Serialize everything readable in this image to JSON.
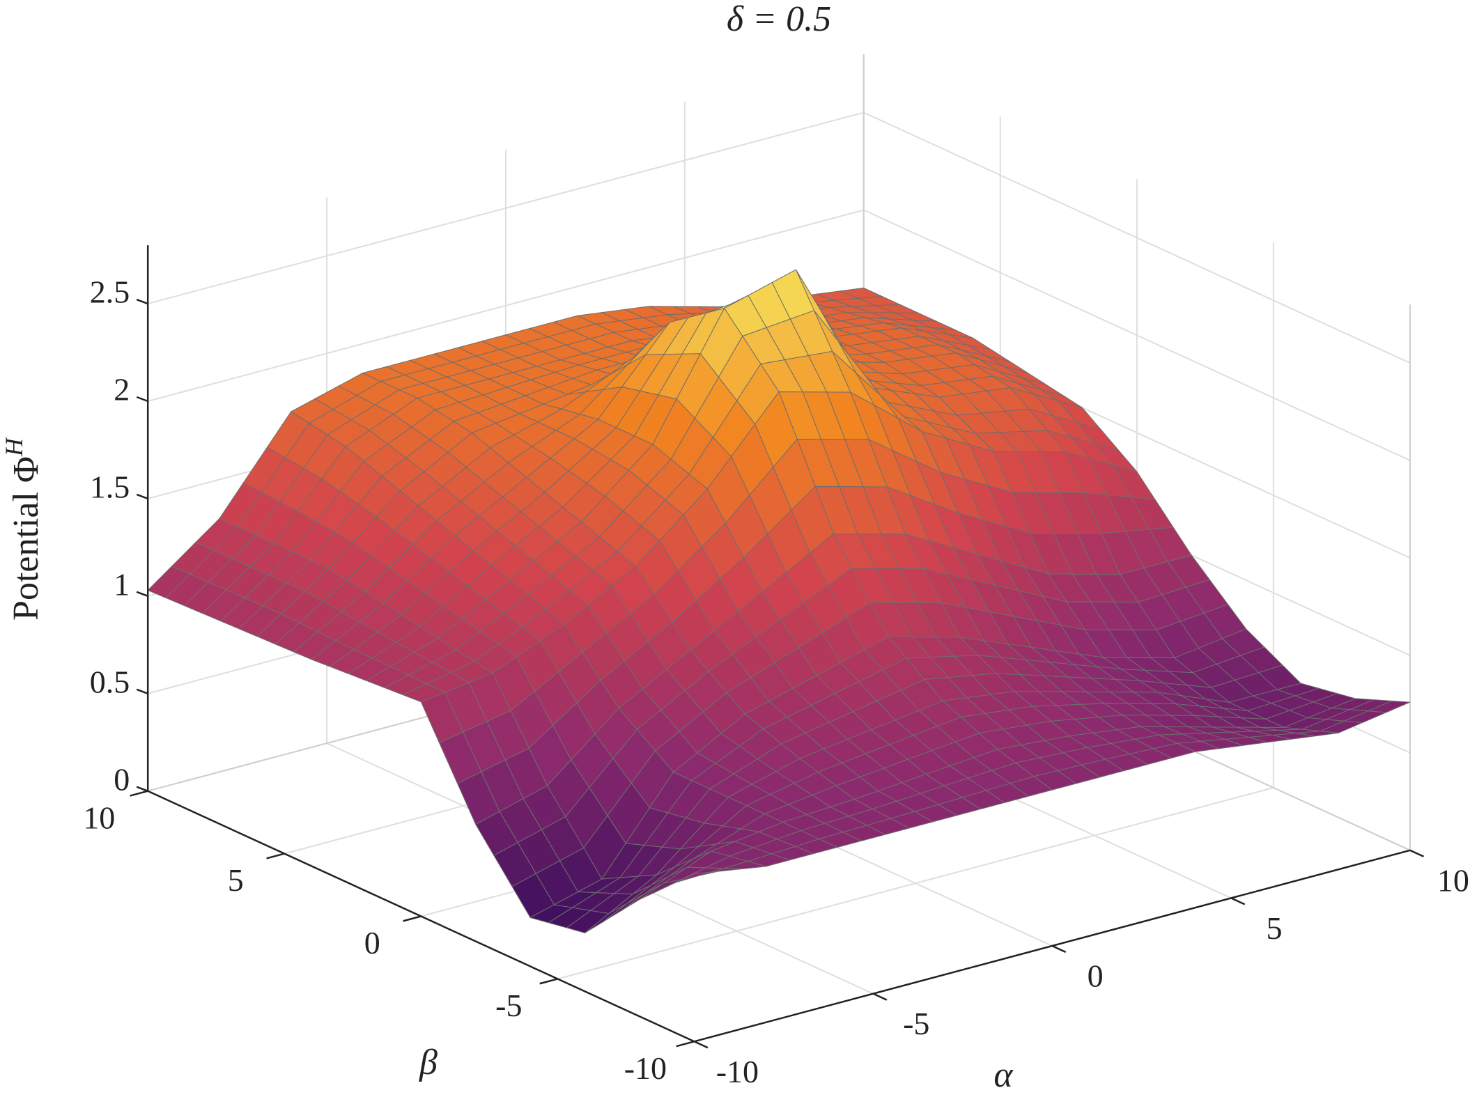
{
  "chart_data": {
    "type": "surface",
    "title": "δ = 0.5",
    "xlabel": "α",
    "ylabel": "β",
    "zlabel": {
      "text": "Potential Φ",
      "superscript": "H"
    },
    "xlim": [
      -10,
      10
    ],
    "ylim": [
      -10,
      10
    ],
    "zlim": [
      0,
      2.8
    ],
    "xticks": [
      -10,
      -5,
      0,
      5,
      10
    ],
    "yticks": [
      -10,
      -5,
      0,
      5,
      10
    ],
    "zticks": [
      0,
      0.5,
      1,
      1.5,
      2,
      2.5
    ],
    "grid": true,
    "colormap": [
      "#3d0f5e",
      "#8c2a6e",
      "#d2434e",
      "#f2841f",
      "#f6e65c"
    ],
    "edge_color": "#6e6e6e",
    "x": [
      -10,
      -8,
      -6,
      -4,
      -2,
      0,
      2,
      4,
      6,
      8,
      10
    ],
    "y": [
      -10,
      -8,
      -6,
      -4,
      -2,
      0,
      2,
      4,
      6,
      8,
      10
    ],
    "z": [
      [
        0.86,
        0.8,
        0.8,
        0.8,
        0.8,
        0.8,
        0.8,
        0.8,
        0.75,
        0.7,
        0.76
      ],
      [
        0.6,
        0.75,
        0.8,
        0.82,
        0.85,
        0.88,
        0.85,
        0.8,
        0.7,
        0.6,
        0.65
      ],
      [
        0.3,
        0.5,
        0.8,
        0.9,
        0.95,
        1.0,
        0.95,
        0.85,
        0.75,
        0.6,
        0.6
      ],
      [
        0.25,
        0.35,
        0.8,
        1.0,
        1.1,
        1.2,
        1.1,
        0.95,
        0.8,
        0.7,
        0.75
      ],
      [
        0.6,
        0.7,
        1.0,
        1.2,
        1.4,
        1.6,
        1.5,
        1.3,
        1.1,
        1.0,
        1.0
      ],
      [
        1.1,
        1.15,
        1.3,
        1.5,
        1.8,
        2.2,
        2.1,
        1.8,
        1.6,
        1.5,
        1.3
      ],
      [
        1.08,
        1.2,
        1.4,
        1.6,
        1.9,
        2.5,
        2.6,
        1.9,
        1.75,
        1.7,
        1.5
      ],
      [
        1.06,
        1.25,
        1.5,
        1.7,
        1.9,
        2.3,
        2.2,
        1.9,
        1.8,
        1.75,
        1.55
      ],
      [
        1.05,
        1.3,
        1.6,
        1.8,
        1.85,
        1.9,
        1.9,
        1.85,
        1.8,
        1.75,
        1.6
      ],
      [
        1.04,
        1.3,
        1.7,
        1.85,
        1.85,
        1.85,
        1.85,
        1.8,
        1.75,
        1.7,
        1.6
      ],
      [
        1.03,
        1.3,
        1.75,
        1.85,
        1.85,
        1.85,
        1.85,
        1.8,
        1.7,
        1.65,
        1.6
      ]
    ]
  }
}
